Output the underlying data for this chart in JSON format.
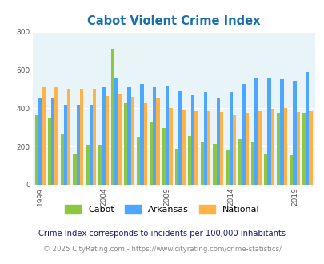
{
  "title": "Cabot Violent Crime Index",
  "years": [
    1999,
    2000,
    2001,
    2002,
    2003,
    2004,
    2005,
    2006,
    2007,
    2008,
    2009,
    2010,
    2011,
    2012,
    2013,
    2014,
    2015,
    2016,
    2017,
    2018,
    2019,
    2020
  ],
  "cabot": [
    365,
    345,
    265,
    160,
    210,
    210,
    710,
    425,
    250,
    325,
    295,
    190,
    255,
    220,
    215,
    185,
    240,
    220,
    165,
    375,
    155,
    375
  ],
  "arkansas": [
    450,
    455,
    420,
    420,
    420,
    510,
    555,
    510,
    525,
    510,
    515,
    490,
    470,
    485,
    450,
    485,
    525,
    555,
    560,
    550,
    545,
    590
  ],
  "national": [
    510,
    510,
    500,
    500,
    500,
    465,
    475,
    460,
    425,
    455,
    400,
    390,
    385,
    385,
    380,
    365,
    375,
    385,
    395,
    400,
    380,
    385
  ],
  "cabot_color": "#8dc63f",
  "arkansas_color": "#4da6ff",
  "national_color": "#ffb347",
  "bg_color": "#e8f4f8",
  "title_color": "#1a6fad",
  "ylim": [
    0,
    800
  ],
  "yticks": [
    0,
    200,
    400,
    600,
    800
  ],
  "xlabel_ticks": [
    1999,
    2004,
    2009,
    2014,
    2019
  ],
  "footnote1": "Crime Index corresponds to incidents per 100,000 inhabitants",
  "footnote2": "© 2025 CityRating.com - https://www.cityrating.com/crime-statistics/",
  "legend_labels": [
    "Cabot",
    "Arkansas",
    "National"
  ],
  "bar_width": 0.27
}
